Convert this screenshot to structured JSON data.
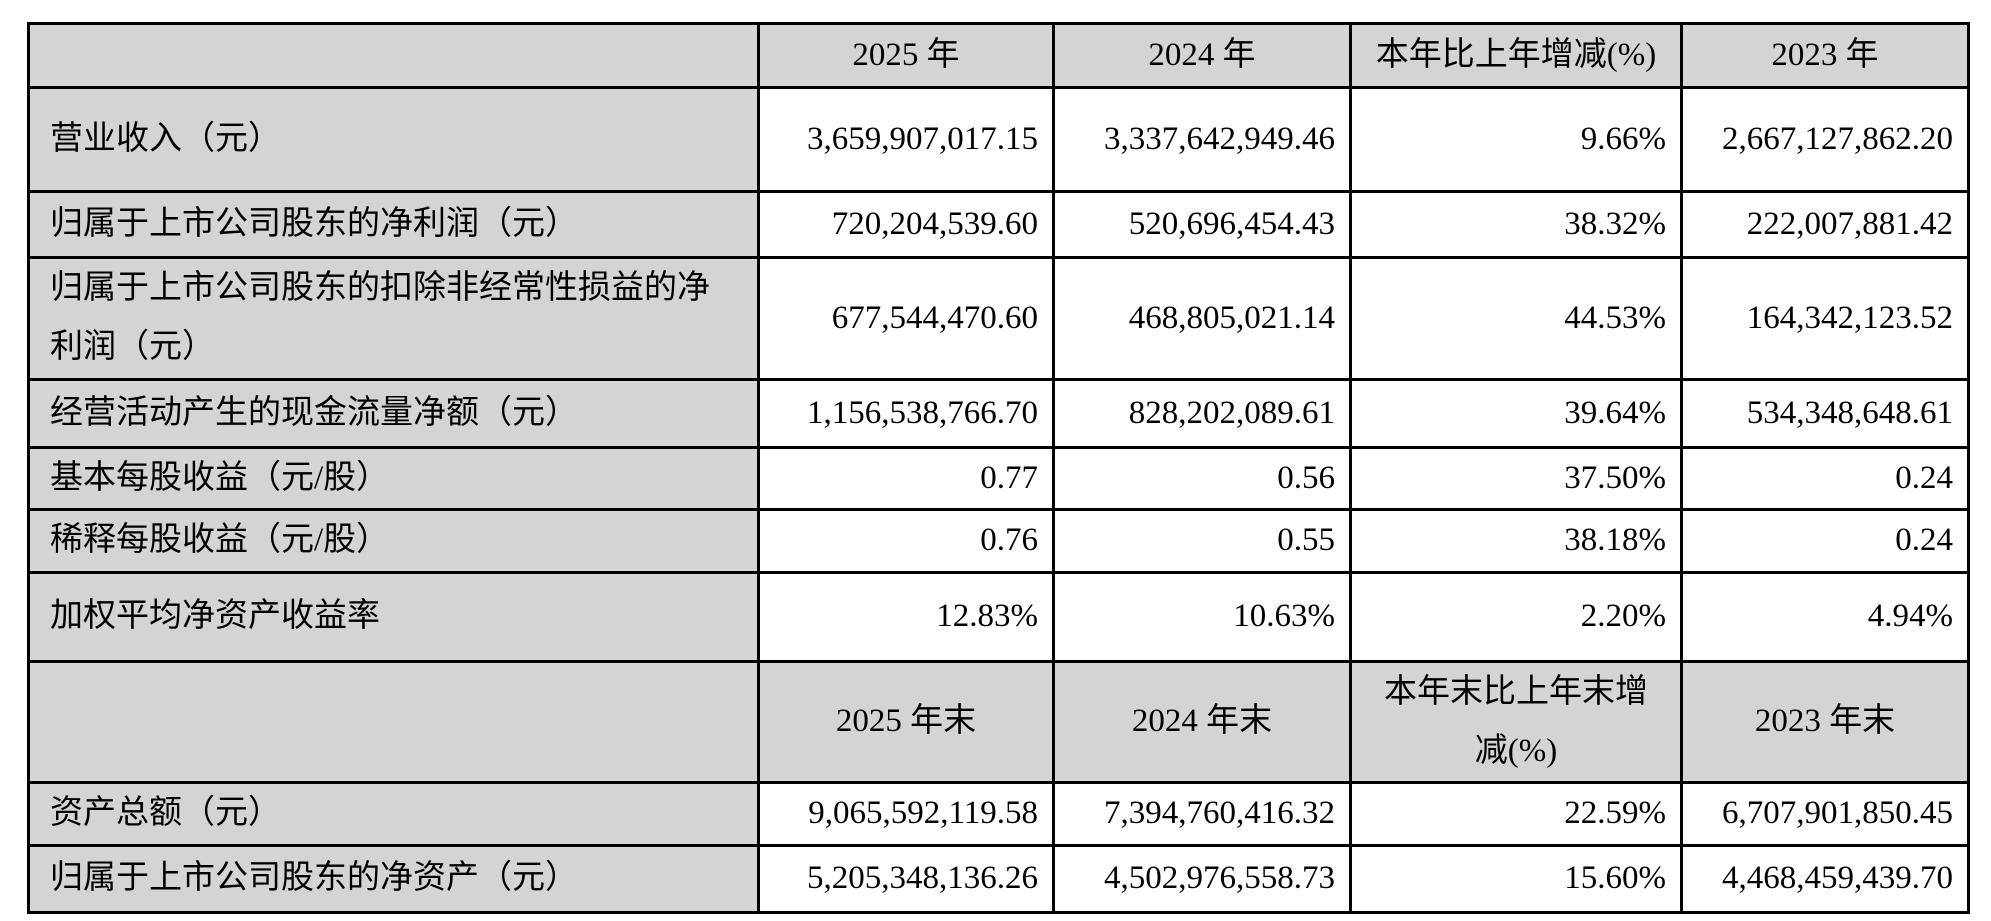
{
  "document": {
    "table_name": "key-accounting-data",
    "columns": {
      "annual": [
        "2025 年",
        "2024 年",
        "本年比上年增减(%)",
        "2023 年"
      ],
      "end_of_year": [
        "2025 年末",
        "2024 年末",
        "本年末比上年末增\n减(%)",
        "2023 年末"
      ]
    },
    "annual_rows": [
      {
        "label": "营业收入（元）",
        "values": [
          "3,659,907,017.15",
          "3,337,642,949.46",
          "9.66%",
          "2,667,127,862.20"
        ]
      },
      {
        "label": "归属于上市公司股东的净利润（元）",
        "values": [
          "720,204,539.60",
          "520,696,454.43",
          "38.32%",
          "222,007,881.42"
        ]
      },
      {
        "label": "归属于上市公司股东的扣除非经常性损益的净利润（元）",
        "values": [
          "677,544,470.60",
          "468,805,021.14",
          "44.53%",
          "164,342,123.52"
        ]
      },
      {
        "label": "经营活动产生的现金流量净额（元）",
        "values": [
          "1,156,538,766.70",
          "828,202,089.61",
          "39.64%",
          "534,348,648.61"
        ]
      },
      {
        "label": "基本每股收益（元/股）",
        "values": [
          "0.77",
          "0.56",
          "37.50%",
          "0.24"
        ]
      },
      {
        "label": "稀释每股收益（元/股）",
        "values": [
          "0.76",
          "0.55",
          "38.18%",
          "0.24"
        ]
      },
      {
        "label": "加权平均净资产收益率",
        "values": [
          "12.83%",
          "10.63%",
          "2.20%",
          "4.94%"
        ]
      }
    ],
    "eoy_rows": [
      {
        "label": "资产总额（元）",
        "values": [
          "9,065,592,119.58",
          "7,394,760,416.32",
          "22.59%",
          "6,707,901,850.45"
        ]
      },
      {
        "label": "归属于上市公司股东的净资产（元）",
        "values": [
          "5,205,348,136.26",
          "4,502,976,558.73",
          "15.60%",
          "4,468,459,439.70"
        ]
      }
    ],
    "colors": {
      "header_bg": "#d4d4d4",
      "label_bg": "#d4d4d4",
      "value_bg": "#ffffff",
      "border": "#000000",
      "text": "#000000"
    }
  }
}
